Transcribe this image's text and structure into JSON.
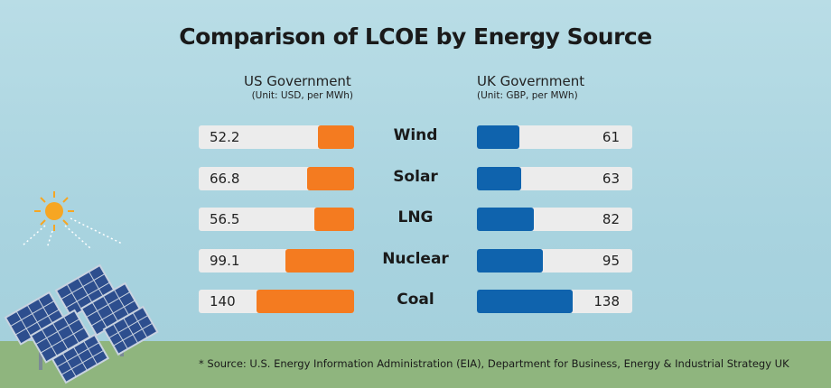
{
  "title": "Comparison of LCOE by Energy Source",
  "us": {
    "header": "US Government",
    "unit": "(Unit: USD, per MWh)",
    "color": "#f47b20"
  },
  "uk": {
    "header": "UK Government",
    "unit": "(Unit: GBP, per MWh)",
    "color": "#0f63ad"
  },
  "source": "* Source: U.S. Energy Information Administration (EIA), Department for Business, Energy & Industrial Strategy UK",
  "chart_data": {
    "type": "bar",
    "categories": [
      "Wind",
      "Solar",
      "LNG",
      "Nuclear",
      "Coal"
    ],
    "series": [
      {
        "name": "US Government",
        "values": [
          52.2,
          66.8,
          56.5,
          99.1,
          140
        ],
        "labels": [
          "52.2",
          "66.8",
          "56.5",
          "99.1",
          "140"
        ]
      },
      {
        "name": "UK Government",
        "values": [
          61,
          63,
          82,
          95,
          138
        ],
        "labels": [
          "61",
          "63",
          "82",
          "95",
          "138"
        ]
      }
    ]
  }
}
